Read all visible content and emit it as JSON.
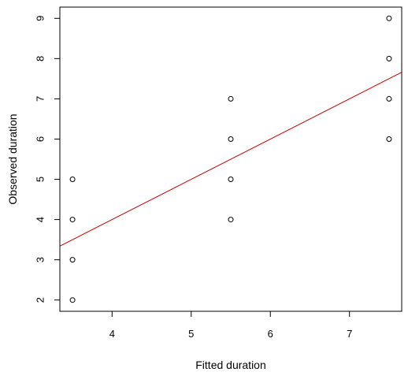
{
  "chart_data": {
    "type": "scatter",
    "xlabel": "Fitted duration",
    "ylabel": "Observed duration",
    "xlim": [
      3.34,
      7.66
    ],
    "ylim": [
      1.72,
      9.28
    ],
    "x_ticks": [
      4,
      5,
      6,
      7
    ],
    "y_ticks": [
      2,
      3,
      4,
      5,
      6,
      7,
      8,
      9
    ],
    "grid": false,
    "points": [
      {
        "x": 3.5,
        "y": 2
      },
      {
        "x": 3.5,
        "y": 3
      },
      {
        "x": 3.5,
        "y": 4
      },
      {
        "x": 3.5,
        "y": 5
      },
      {
        "x": 5.5,
        "y": 4
      },
      {
        "x": 5.5,
        "y": 5
      },
      {
        "x": 5.5,
        "y": 6
      },
      {
        "x": 5.5,
        "y": 7
      },
      {
        "x": 7.5,
        "y": 6
      },
      {
        "x": 7.5,
        "y": 7
      },
      {
        "x": 7.5,
        "y": 8
      },
      {
        "x": 7.5,
        "y": 9
      }
    ],
    "reference_line": {
      "intercept": 0,
      "slope": 1,
      "color": "#cc0000"
    },
    "point_color": "#000000"
  }
}
